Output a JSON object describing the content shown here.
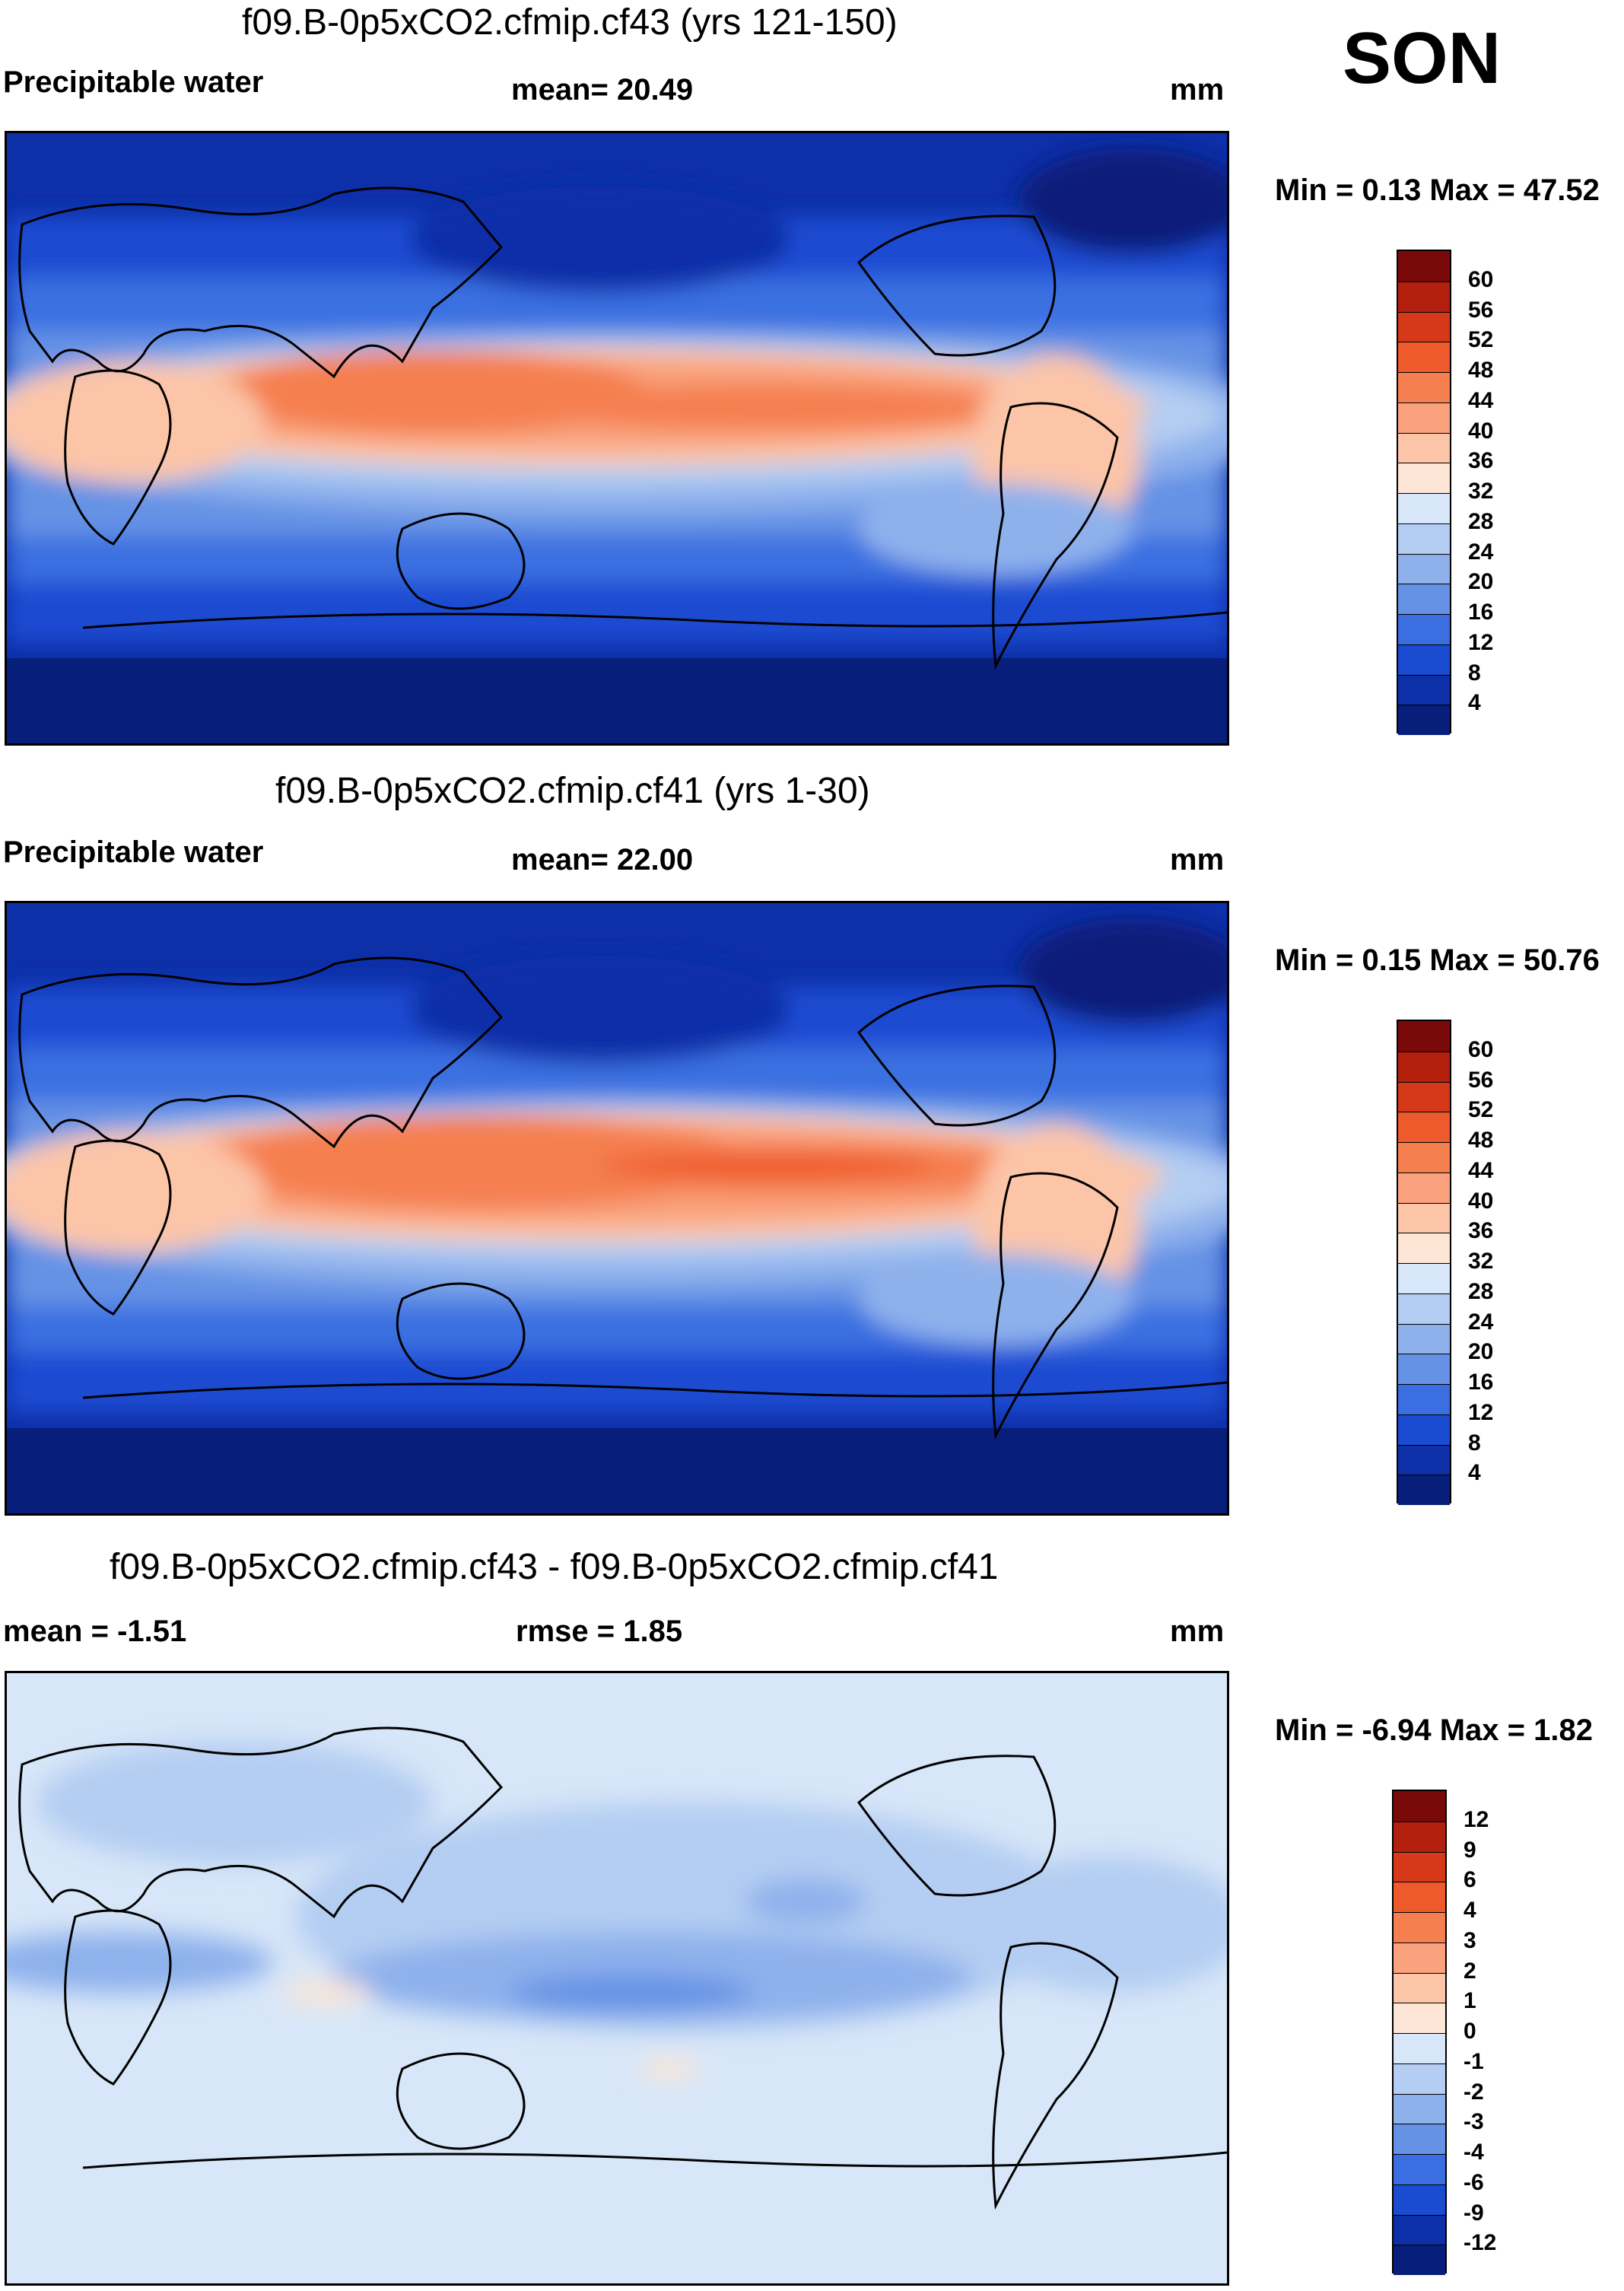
{
  "season": "SON",
  "units": "mm",
  "panels": [
    {
      "title": "f09.B-0p5xCO2.cfmip.cf43 (yrs 121-150)",
      "left_label": "Precipitable water",
      "center_label": "mean=  20.49",
      "right_label": "mm",
      "minmax": "Min =   0.13 Max =  47.52",
      "colorbar": {
        "levels": [
          "60",
          "56",
          "52",
          "48",
          "44",
          "40",
          "36",
          "32",
          "28",
          "24",
          "20",
          "16",
          "12",
          "8",
          "4"
        ],
        "colors": [
          "#7a0a0a",
          "#b3200d",
          "#d6391a",
          "#ef5a2c",
          "#f57f4f",
          "#f9a27d",
          "#fcc5a8",
          "#fde6d6",
          "#d7e6f8",
          "#b4cdf2",
          "#8eb1ec",
          "#6592e5",
          "#3b6fe1",
          "#1a4cd2",
          "#0d2fa8",
          "#071e7a"
        ]
      }
    },
    {
      "title": "f09.B-0p5xCO2.cfmip.cf41 (yrs 1-30)",
      "left_label": "Precipitable water",
      "center_label": "mean=  22.00",
      "right_label": "mm",
      "minmax": "Min =   0.15 Max =  50.76",
      "colorbar": {
        "levels": [
          "60",
          "56",
          "52",
          "48",
          "44",
          "40",
          "36",
          "32",
          "28",
          "24",
          "20",
          "16",
          "12",
          "8",
          "4"
        ],
        "colors": [
          "#7a0a0a",
          "#b3200d",
          "#d6391a",
          "#ef5a2c",
          "#f57f4f",
          "#f9a27d",
          "#fcc5a8",
          "#fde6d6",
          "#d7e6f8",
          "#b4cdf2",
          "#8eb1ec",
          "#6592e5",
          "#3b6fe1",
          "#1a4cd2",
          "#0d2fa8",
          "#071e7a"
        ]
      }
    },
    {
      "title": "f09.B-0p5xCO2.cfmip.cf43 - f09.B-0p5xCO2.cfmip.cf41",
      "left_label": "mean =  -1.51",
      "center_label": "rmse =    1.85",
      "right_label": "mm",
      "minmax": "Min =  -6.94 Max =   1.82",
      "colorbar": {
        "levels": [
          "12",
          "9",
          "6",
          "4",
          "3",
          "2",
          "1",
          "0",
          "-1",
          "-2",
          "-3",
          "-4",
          "-6",
          "-9",
          "-12"
        ],
        "colors": [
          "#7a0a0a",
          "#b3200d",
          "#d6391a",
          "#ef5a2c",
          "#f57f4f",
          "#f9a27d",
          "#fcc5a8",
          "#fde6d6",
          "#d7e6f8",
          "#b4cdf2",
          "#8eb1ec",
          "#6592e5",
          "#3b6fe1",
          "#1a4cd2",
          "#0d2fa8",
          "#071e7a"
        ]
      }
    }
  ]
}
